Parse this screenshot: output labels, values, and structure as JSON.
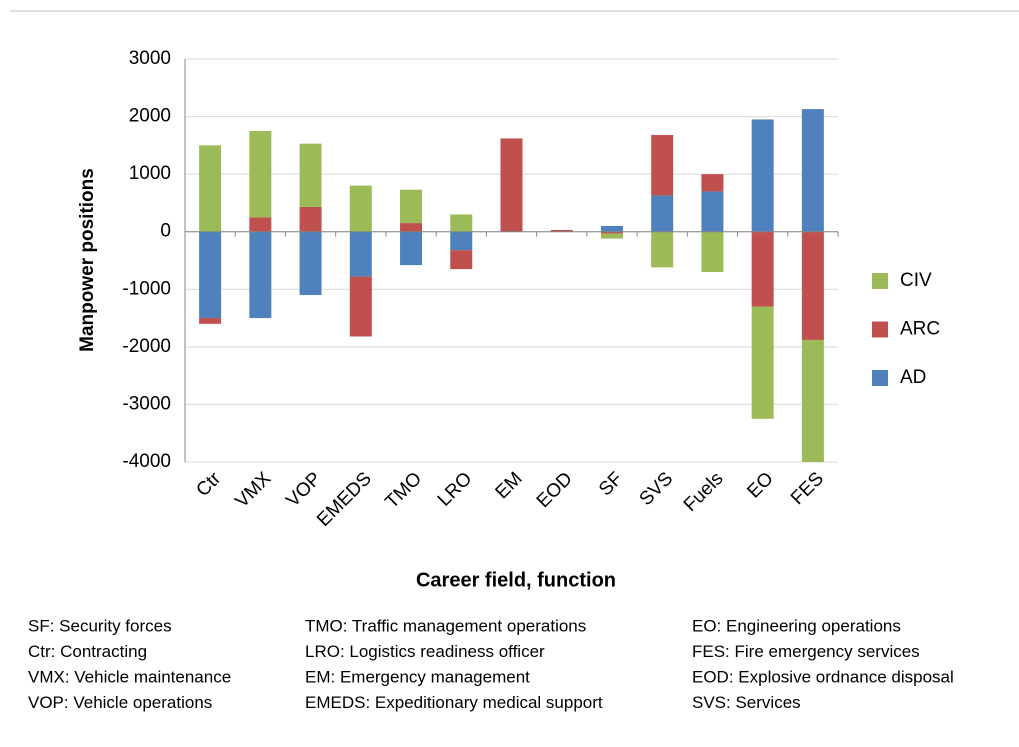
{
  "chart_data": {
    "type": "bar",
    "stacked": true,
    "y_axis_label": "Manpower positions",
    "x_axis_label": "Career field, function",
    "categories": [
      "Ctr",
      "VMX",
      "VOP",
      "EMEDS",
      "TMO",
      "LRO",
      "EM",
      "EOD",
      "SF",
      "SVS",
      "Fuels",
      "EO",
      "FES"
    ],
    "series": [
      {
        "name": "CIV",
        "color": "#9bbb59",
        "values": [
          1500,
          1500,
          1100,
          800,
          580,
          300,
          0,
          0,
          -90,
          -620,
          -700,
          -1950,
          -2120
        ]
      },
      {
        "name": "ARC",
        "color": "#c0504d",
        "values": [
          -100,
          250,
          430,
          -1040,
          150,
          -330,
          1620,
          30,
          -30,
          1050,
          300,
          -1300,
          -1880
        ]
      },
      {
        "name": "AD",
        "color": "#4f81bd",
        "values": [
          -1500,
          -1500,
          -1100,
          -780,
          -580,
          -320,
          0,
          0,
          100,
          630,
          700,
          1950,
          2130
        ]
      }
    ],
    "ylim": [
      -4000,
      3000
    ],
    "yticks": [
      -4000,
      -3000,
      -2000,
      -1000,
      0,
      1000,
      2000,
      3000
    ],
    "grid": true,
    "legend": "right",
    "notes": [
      "SF: Security forces",
      "Ctr: Contracting",
      "VMX: Vehicle maintenance",
      "VOP: Vehicle operations",
      "TMO: Traffic management operations",
      "LRO: Logistics readiness officer",
      "EM: Emergency management",
      "EMEDS: Expeditionary medical support",
      "EO: Engineering operations",
      "FES: Fire emergency services",
      "EOD: Explosive ordnance disposal",
      "SVS: Services"
    ]
  }
}
